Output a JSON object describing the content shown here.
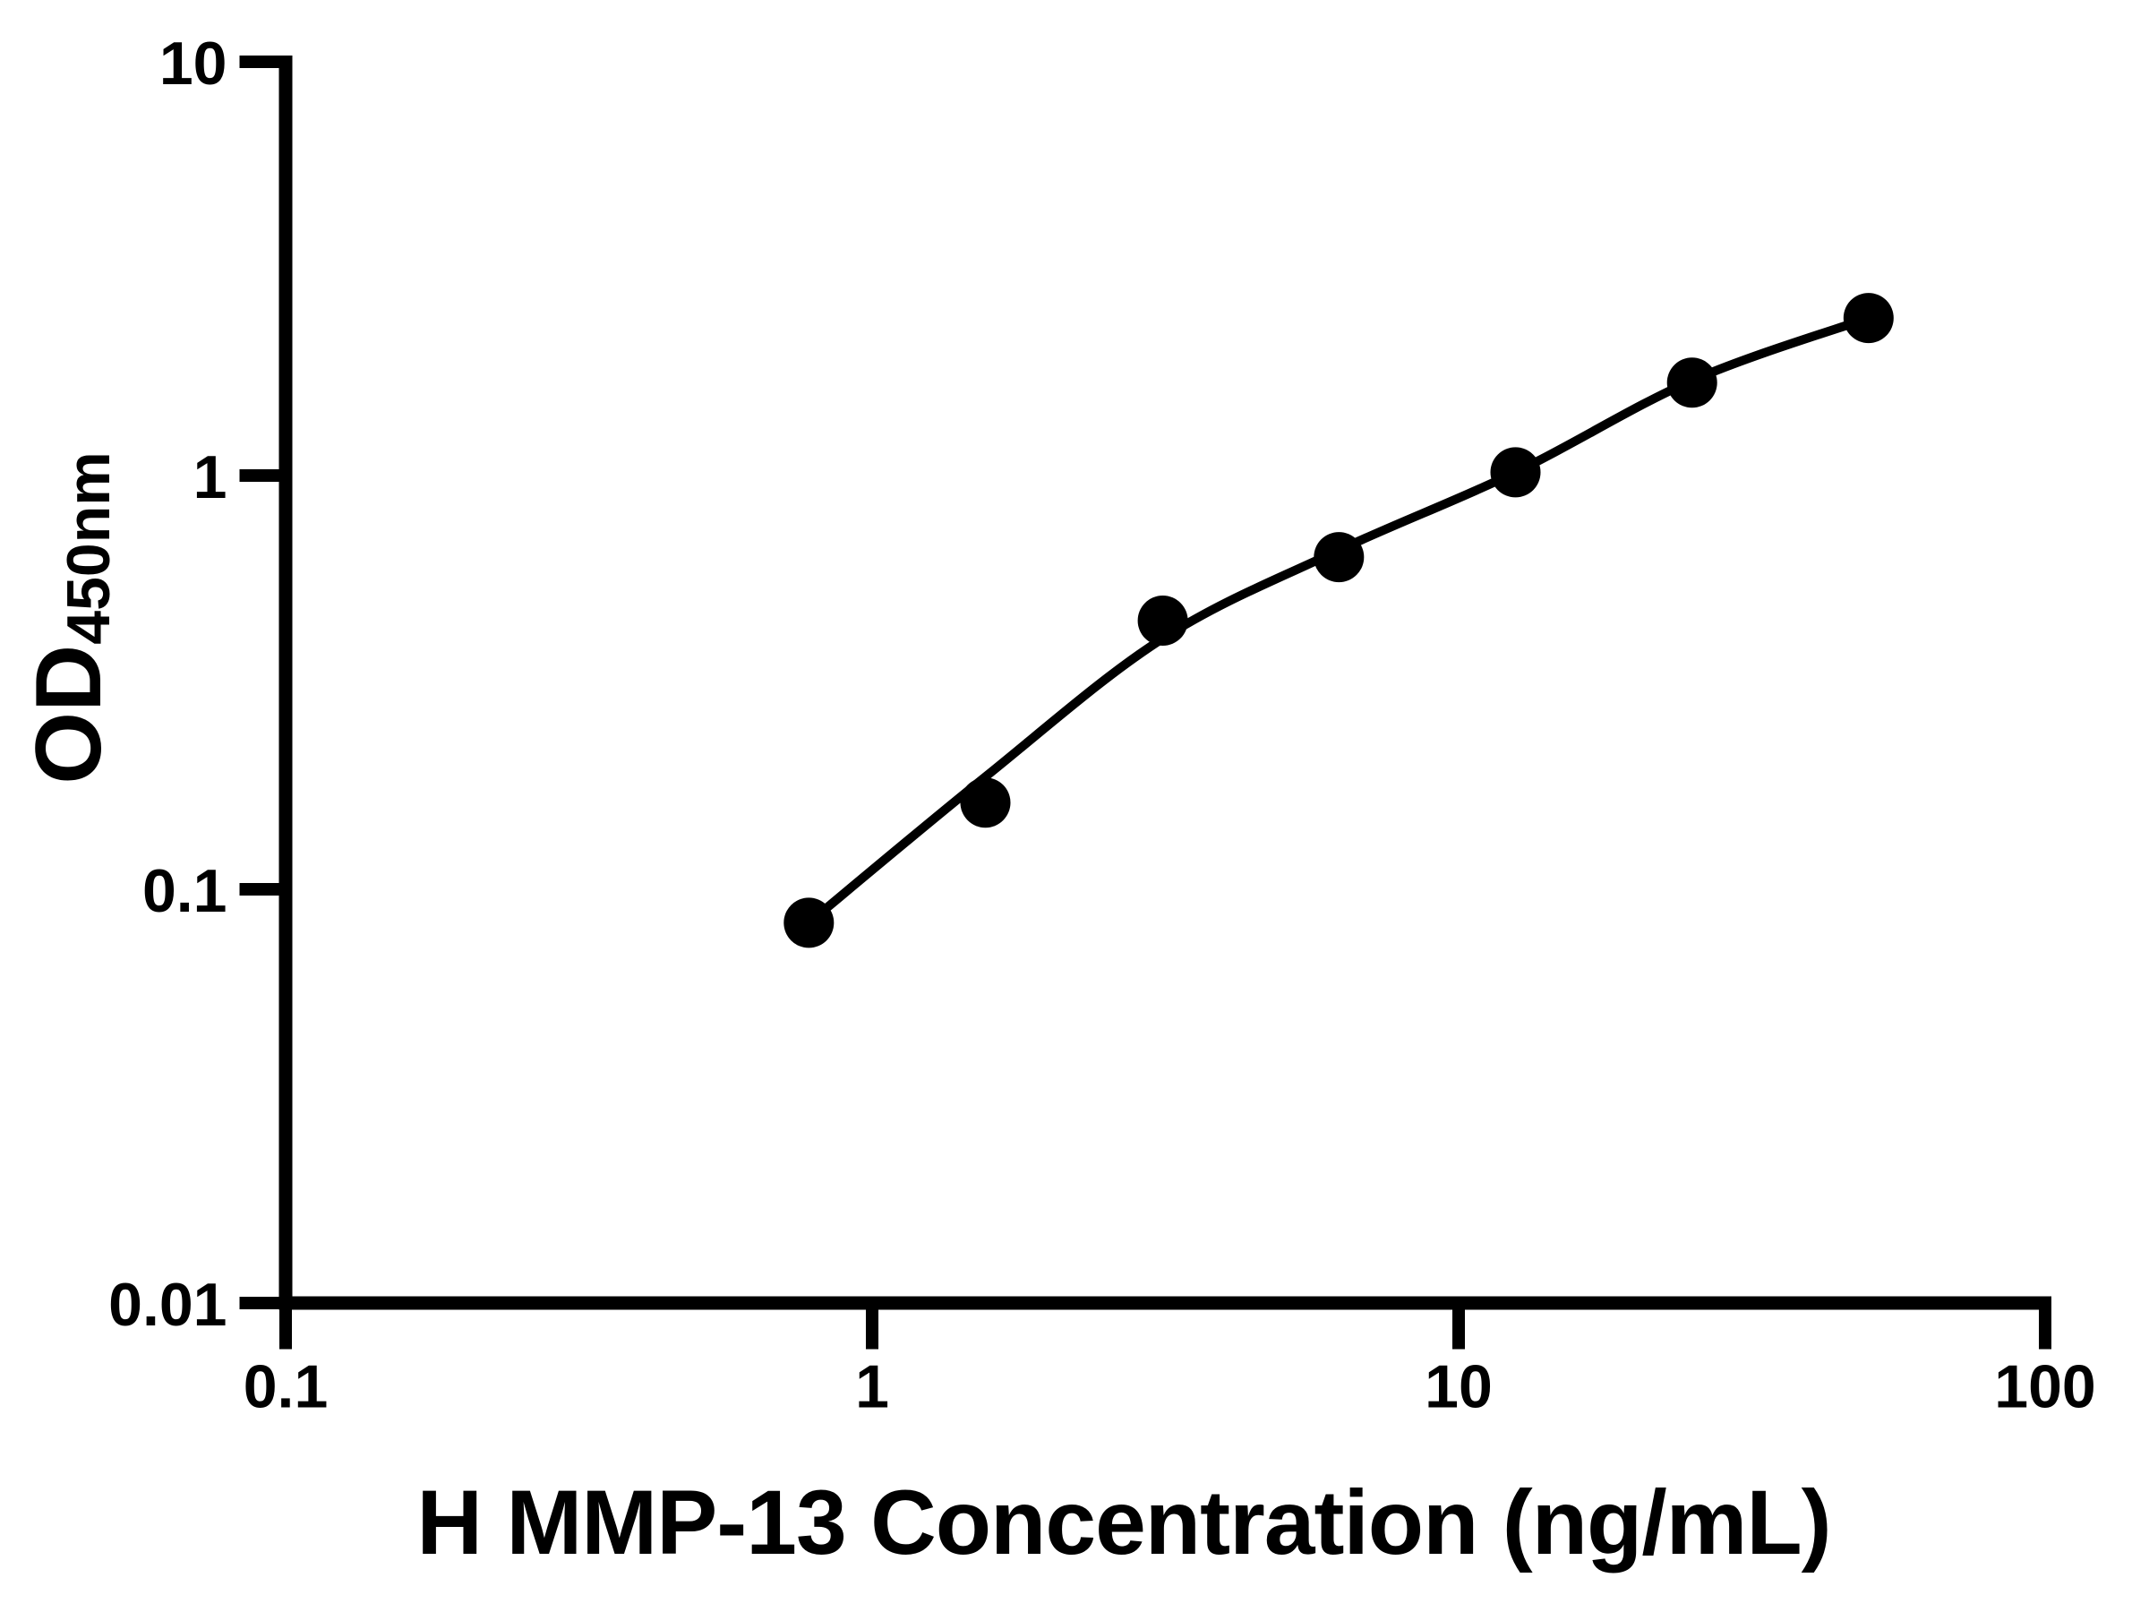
{
  "figure": {
    "background": "#ffffff",
    "ink_color": "#000000"
  },
  "chart_data": {
    "type": "scatter",
    "title": "",
    "xlabel": "H MMP-13 Concentration (ng/mL)",
    "ylabel_main": "OD",
    "ylabel_sub": "450nm",
    "x_scale": "log",
    "y_scale": "log",
    "xlim": [
      0.1,
      100
    ],
    "ylim": [
      0.01,
      10
    ],
    "grid": false,
    "legend_position": "none",
    "x_ticks": [
      {
        "value": 0.1,
        "label": "0.1"
      },
      {
        "value": 1,
        "label": "1"
      },
      {
        "value": 10,
        "label": "10"
      },
      {
        "value": 100,
        "label": "100"
      }
    ],
    "y_ticks": [
      {
        "value": 0.01,
        "label": "0.01"
      },
      {
        "value": 0.1,
        "label": "0.1"
      },
      {
        "value": 1,
        "label": "1"
      },
      {
        "value": 10,
        "label": "10"
      }
    ],
    "series": [
      {
        "name": "standard-data-points",
        "type": "scatter",
        "marker": "filled-circle",
        "color": "#000000",
        "x": [
          0.78,
          1.56,
          3.13,
          6.25,
          12.5,
          25,
          50
        ],
        "y": [
          0.083,
          0.162,
          0.446,
          0.635,
          1.018,
          1.677,
          2.403
        ]
      },
      {
        "name": "fitted-curve",
        "type": "line",
        "color": "#000000",
        "x": [
          0.78,
          1.56,
          3.13,
          6.25,
          12.5,
          25,
          50
        ],
        "y": [
          0.083,
          0.187,
          0.404,
          0.66,
          1.018,
          1.697,
          2.403
        ]
      }
    ]
  }
}
